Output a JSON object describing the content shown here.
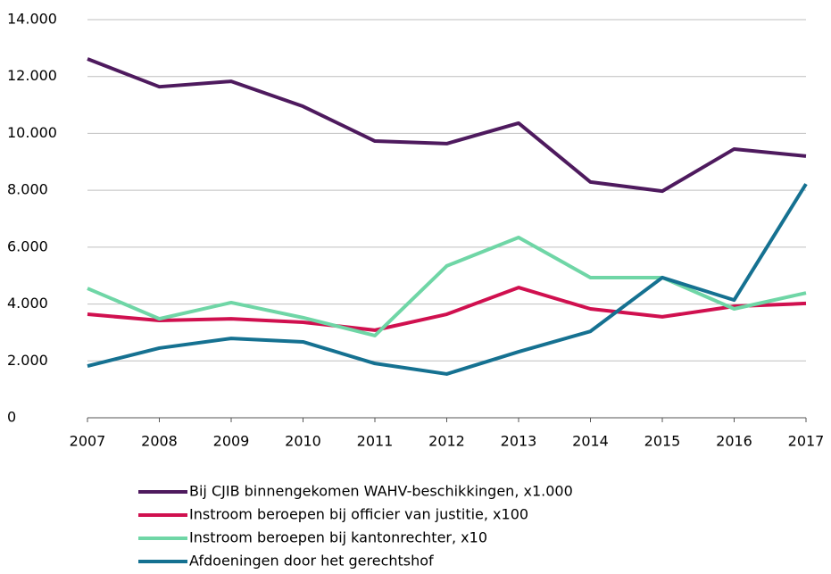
{
  "chart_data": {
    "type": "line",
    "x": [
      2007,
      2008,
      2009,
      2010,
      2011,
      2012,
      2013,
      2014,
      2015,
      2016,
      2017
    ],
    "xlim": [
      2007,
      2017
    ],
    "xticks": [
      2007,
      2008,
      2009,
      2010,
      2011,
      2012,
      2013,
      2014,
      2015,
      2016,
      2017
    ],
    "ylim": [
      0,
      14000
    ],
    "yticks": [
      0,
      {
        "value": 2000,
        "label": "2.000"
      },
      {
        "value": 4000,
        "label": "4.000"
      },
      {
        "value": 6000,
        "label": "6.000"
      },
      {
        "value": 8000,
        "label": "8.000"
      },
      {
        "value": 10000,
        "label": "10.000"
      },
      {
        "value": 12000,
        "label": "12.000"
      },
      {
        "value": 14000,
        "label": "14.000"
      }
    ],
    "grid": true,
    "legend": "bottom",
    "series": [
      {
        "name": "Bij CJIB binnengekomen WAHV-beschikkingen, x1.000",
        "color": "#4e1a5e",
        "values": [
          12620,
          11640,
          11830,
          10950,
          9730,
          9640,
          10360,
          8290,
          7970,
          9450,
          9200
        ]
      },
      {
        "name": "Instroom beroepen bij officier van justitie, x100",
        "color": "#d0104f",
        "values": [
          3640,
          3420,
          3480,
          3360,
          3080,
          3640,
          4580,
          3830,
          3550,
          3920,
          4020
        ]
      },
      {
        "name": "Instroom beroepen bij kantonrechter, x10",
        "color": "#6fd6a6",
        "values": [
          4550,
          3480,
          4050,
          3520,
          2890,
          5340,
          6340,
          4930,
          4930,
          3830,
          4390
        ]
      },
      {
        "name": "Afdoeningen door het gerechtshof",
        "color": "#157191",
        "values": [
          1820,
          2450,
          2790,
          2670,
          1910,
          1540,
          2320,
          3040,
          4930,
          4140,
          8220
        ]
      }
    ]
  }
}
